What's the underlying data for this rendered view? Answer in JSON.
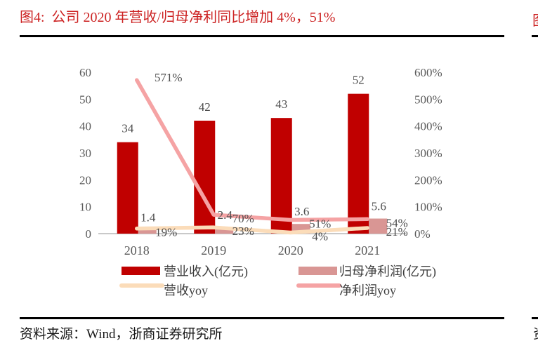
{
  "page": {
    "figure_title": "图4:  公司 2020 年营收/归母净利同比增加 4%，51%",
    "source": "资料来源：Wind，浙商证券研究所",
    "adjacent_column": {
      "title_fragment": "图",
      "source_fragment": "资"
    },
    "colors": {
      "title_red": "#cc2222",
      "rule_black": "#000000"
    }
  },
  "chart_data": {
    "type": "bar",
    "subtype": "clustered-bar-with-lines-dual-axis",
    "title": "公司 2020 年营收/归母净利同比增加 4%，51%",
    "categories": [
      "2018",
      "2019",
      "2020",
      "2021"
    ],
    "series": [
      {
        "name": "营业收入(亿元)",
        "type": "bar",
        "axis": "left",
        "color": "#C00000",
        "values": [
          34,
          42,
          43,
          52
        ],
        "labels": [
          "34",
          "42",
          "43",
          "52"
        ]
      },
      {
        "name": "归母净利润(亿元)",
        "type": "bar",
        "axis": "left",
        "color": "#D99694",
        "values": [
          1.4,
          2.4,
          3.6,
          5.6
        ],
        "labels": [
          "1.4",
          "2.4",
          "3.6",
          "5.6"
        ]
      },
      {
        "name": "营收yoy",
        "type": "line",
        "axis": "right",
        "color": "#FBDCB9",
        "values": [
          19,
          23,
          4,
          21
        ],
        "labels": [
          "19%",
          "23%",
          "4%",
          "21%"
        ]
      },
      {
        "name": "净利润yoy",
        "type": "line",
        "axis": "right",
        "color": "#F5A3A4",
        "values": [
          571,
          70,
          51,
          54
        ],
        "labels": [
          "571%",
          "70%",
          "51%",
          "54%"
        ]
      }
    ],
    "left_axis": {
      "min": 0,
      "max": 60,
      "ticks": [
        "0",
        "10",
        "20",
        "30",
        "40",
        "50",
        "60"
      ]
    },
    "right_axis": {
      "min": 0,
      "max": 600,
      "ticks": [
        "0%",
        "100%",
        "200%",
        "300%",
        "400%",
        "500%",
        "600%"
      ]
    },
    "grid": "off",
    "baseline_color": "#C9C9C9",
    "legend_position": "bottom"
  }
}
